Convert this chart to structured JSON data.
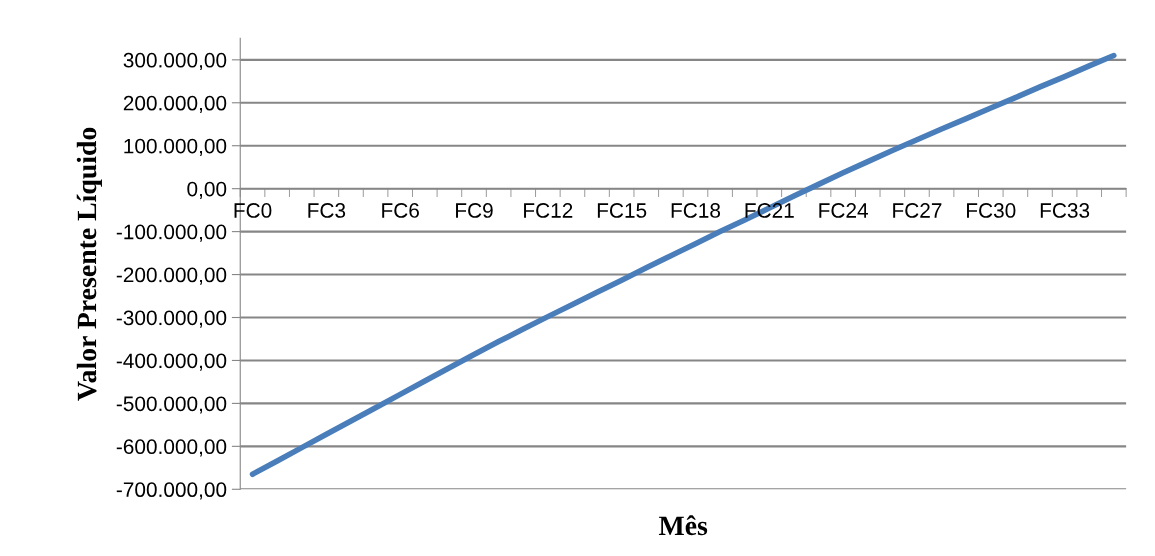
{
  "chart_data": {
    "type": "line",
    "xlabel": "Mês",
    "ylabel": "Valor Presente Líquido",
    "categories": [
      "FC0",
      null,
      null,
      "FC3",
      null,
      null,
      "FC6",
      null,
      null,
      "FC9",
      null,
      null,
      "FC12",
      null,
      null,
      "FC15",
      null,
      null,
      "FC18",
      null,
      null,
      "FC21",
      null,
      null,
      "FC24",
      null,
      null,
      "FC27",
      null,
      null,
      "FC30",
      null,
      null,
      "FC33",
      null,
      null
    ],
    "series": [
      {
        "color": "#4a7ebb",
        "values": [
          -665000,
          -634000,
          -603000,
          -572000,
          -541000,
          -510000,
          -479000,
          -448000,
          -417000,
          -386000,
          -356000,
          -327000,
          -298000,
          -270000,
          -241000,
          -213000,
          -184000,
          -156000,
          -128000,
          -100000,
          -73000,
          -45000,
          -17000,
          10000,
          37000,
          63000,
          89000,
          114000,
          139000,
          163000,
          188000,
          212000,
          237000,
          261000,
          286000,
          310000
        ]
      }
    ],
    "ylim": [
      -700000,
      350000
    ],
    "yticks": [
      {
        "value": -700000,
        "label": "-700.000,00"
      },
      {
        "value": -600000,
        "label": "-600.000,00"
      },
      {
        "value": -500000,
        "label": "-500.000,00"
      },
      {
        "value": -400000,
        "label": "-400.000,00"
      },
      {
        "value": -300000,
        "label": "-300.000,00"
      },
      {
        "value": -200000,
        "label": "-200.000,00"
      },
      {
        "value": -100000,
        "label": "-100.000,00"
      },
      {
        "value": 0,
        "label": "0,00"
      },
      {
        "value": 100000,
        "label": "100.000,00"
      },
      {
        "value": 200000,
        "label": "200.000,00"
      },
      {
        "value": 300000,
        "label": "300.000,00"
      }
    ],
    "grid": "y",
    "legend": false,
    "marker": "none",
    "line_style": "solid"
  }
}
